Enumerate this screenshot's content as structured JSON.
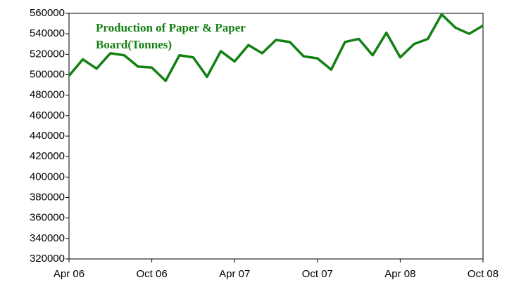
{
  "chart_data": {
    "type": "line",
    "title": "Production of Paper & Paper Board(Tonnes)",
    "categories": [
      "Apr 06",
      null,
      null,
      null,
      null,
      null,
      "Oct 06",
      null,
      null,
      null,
      null,
      null,
      "Apr 07",
      null,
      null,
      null,
      null,
      null,
      "Oct 07",
      null,
      null,
      null,
      null,
      null,
      "Apr 08",
      null,
      null,
      null,
      null,
      null,
      "Oct 08"
    ],
    "series": [
      {
        "name": "Production",
        "color": "#138013",
        "values": [
          499000,
          515000,
          506000,
          521000,
          519000,
          508000,
          507000,
          494000,
          519000,
          517000,
          498000,
          523000,
          513000,
          529000,
          521000,
          534000,
          532000,
          518000,
          516000,
          505000,
          532000,
          535000,
          519000,
          541000,
          517000,
          530000,
          535000,
          559000,
          546000,
          540000,
          548000
        ]
      }
    ],
    "ylim": [
      320000,
      560000
    ],
    "yticks": [
      320000,
      340000,
      360000,
      380000,
      400000,
      420000,
      440000,
      460000,
      480000,
      500000,
      520000,
      540000,
      560000
    ]
  }
}
